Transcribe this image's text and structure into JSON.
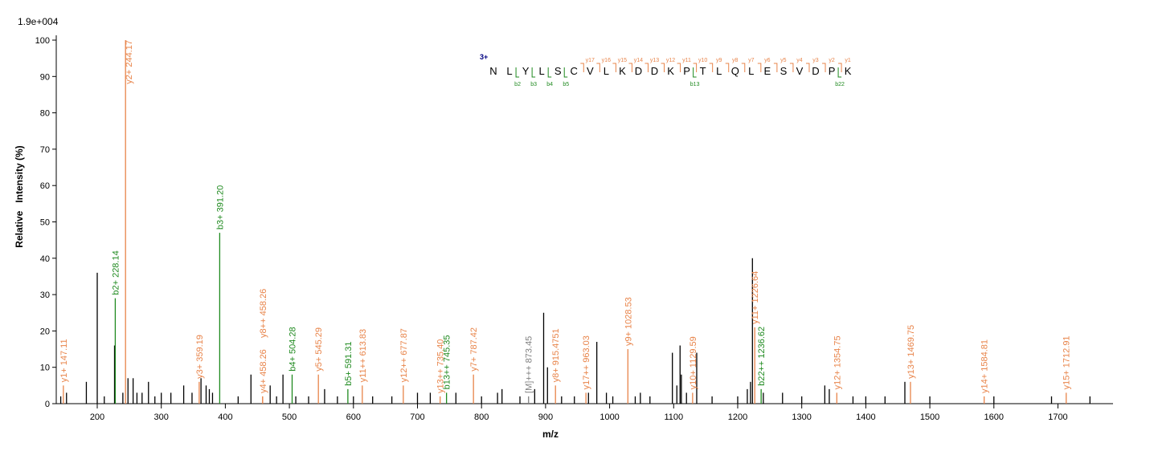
{
  "chart_data": {
    "type": "spectrum",
    "scale_label": "1.9e+004",
    "ylabel": "Relative   Intensity (%)",
    "xlabel": "m/z",
    "xlim": [
      136,
      1786
    ],
    "ylim": [
      0,
      100
    ],
    "xticks": [
      200,
      300,
      400,
      500,
      600,
      700,
      800,
      900,
      1000,
      1100,
      1200,
      1300,
      1400,
      1500,
      1600,
      1700
    ],
    "yticks": [
      0,
      10,
      20,
      30,
      40,
      50,
      60,
      70,
      80,
      90,
      100
    ],
    "peaks": {
      "color": "#000000",
      "x": [
        143,
        152,
        183,
        200,
        211,
        227,
        240,
        248,
        256,
        262,
        270,
        280,
        290,
        300,
        315,
        335,
        348,
        362,
        370,
        375,
        380,
        420,
        440,
        470,
        480,
        490,
        510,
        530,
        555,
        575,
        600,
        630,
        660,
        700,
        720,
        760,
        800,
        825,
        832,
        860,
        883,
        897,
        903,
        925,
        945,
        967,
        980,
        995,
        1005,
        1040,
        1048,
        1063,
        1098,
        1105,
        1110,
        1112,
        1120,
        1136,
        1160,
        1200,
        1215,
        1220,
        1223,
        1240,
        1270,
        1300,
        1336,
        1343,
        1380,
        1400,
        1430,
        1461,
        1500,
        1600,
        1690,
        1750
      ],
      "values": [
        2,
        3,
        6,
        36,
        2,
        16,
        3,
        7,
        7,
        3,
        3,
        6,
        2,
        3,
        3,
        5,
        3,
        7,
        5,
        4,
        3,
        2,
        8,
        5,
        2,
        8,
        2,
        2,
        4,
        2,
        2,
        2,
        2,
        3,
        3,
        3,
        2,
        3,
        4,
        2,
        4,
        25,
        10,
        2,
        2,
        3,
        17,
        3,
        2,
        2,
        3,
        2,
        14,
        5,
        16,
        8,
        3,
        14,
        2,
        2,
        4,
        6,
        40,
        3,
        3,
        2,
        5,
        4,
        2,
        2,
        2,
        6,
        2,
        2,
        2,
        2
      ]
    },
    "annotated": {
      "x": [
        147.11,
        228.14,
        244.17,
        359.19,
        391.2,
        458.26,
        458.26,
        504.28,
        545.29,
        591.31,
        613.83,
        677.87,
        735.4,
        745.35,
        787.42,
        873.45,
        915.4751,
        963.03,
        1028.53,
        1129.59,
        1226.64,
        1236.62,
        1354.75,
        1469.75,
        1584.81,
        1712.91
      ],
      "values": [
        5,
        29,
        100,
        6,
        47,
        2,
        2,
        8,
        8,
        4,
        5,
        5,
        2,
        3,
        8,
        2,
        5,
        3,
        15,
        3,
        21,
        4,
        3,
        6,
        2,
        3
      ],
      "labels": [
        "y1+ 147.11",
        "b2+ 228.14",
        "y2+ 244.17",
        "y3+ 359.19",
        "b3+ 391.20",
        "y4+ 458.26",
        "y8++ 458.26",
        "b4+ 504.28",
        "y5+ 545.29",
        "b5+ 591.31",
        "y11++ 613.83",
        "y12++ 677.87",
        "y13++ 735.40",
        "b13++ 745.35",
        "y7+ 787.42",
        "[M]+++ 873.45",
        "y8+ 915.4751",
        "y17++ 963.03",
        "y9+ 1028.53",
        "y10+ 1129.59",
        "y11+ 1226.64",
        "b22++ 1236.62",
        "y12+ 1354.75",
        "y13+ 1469.75",
        "y14+ 1584.81",
        "y15+ 1712.91"
      ],
      "colors": [
        "#e8844a",
        "#1f8a1f",
        "#e8844a",
        "#e8844a",
        "#1f8a1f",
        "#e8844a",
        "#e8844a",
        "#1f8a1f",
        "#e8844a",
        "#1f8a1f",
        "#e8844a",
        "#e8844a",
        "#e8844a",
        "#1f8a1f",
        "#e8844a",
        "#808080",
        "#e8844a",
        "#e8844a",
        "#e8844a",
        "#e8844a",
        "#e8844a",
        "#1f8a1f",
        "#e8844a",
        "#e8844a",
        "#e8844a",
        "#e8844a"
      ]
    },
    "sequence": {
      "charge": "3+",
      "residues": [
        "N",
        "L",
        "Y",
        "L",
        "S",
        "C",
        "V",
        "L",
        "K",
        "D",
        "D",
        "K",
        "P",
        "T",
        "L",
        "Q",
        "L",
        "E",
        "S",
        "V",
        "D",
        "P",
        "K"
      ],
      "y_ions": [
        "y17",
        "y16",
        "y15",
        "y14",
        "y13",
        "y12",
        "y11",
        "y10",
        "y9",
        "y8",
        "y7",
        "y6",
        "y5",
        "y4",
        "y3",
        "y2",
        "y1"
      ],
      "b_ions": [
        "b2",
        "b3",
        "b4",
        "b5",
        "b13",
        "b22"
      ]
    }
  }
}
